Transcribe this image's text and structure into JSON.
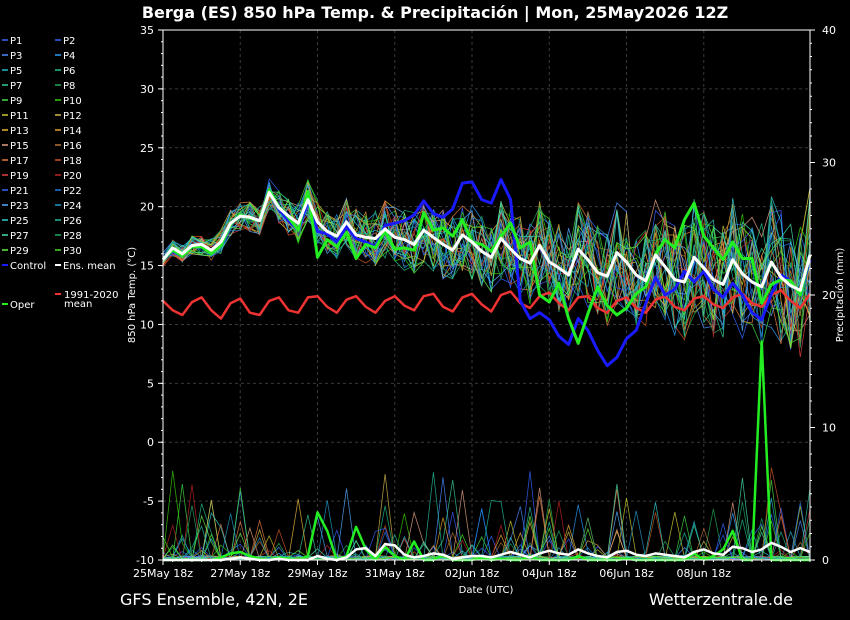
{
  "header": {
    "title": "Berga  (ES)  850 hPa Temp. & Precipitación | Mon, 25May2026 12Z"
  },
  "footer": {
    "left": "GFS Ensemble, 42N, 2E",
    "right": "Wetterzentrale.de"
  },
  "chart_data": {
    "type": "line",
    "xlabel": "Date (UTC)",
    "ylabel_left": "850 hPa Temp. (°C)",
    "ylabel_right": "Precipitación (mm)",
    "ylim_left": [
      -10,
      35
    ],
    "ylim_right": [
      0,
      40
    ],
    "yticks_left": [
      "35",
      "30",
      "25",
      "20",
      "15",
      "10",
      "5",
      "0",
      "-5",
      "-10"
    ],
    "yticks_right": [
      "40",
      "30",
      "20",
      "10",
      "0"
    ],
    "xticks": [
      "25May 18z",
      "27May 18z",
      "29May 18z",
      "31May 18z",
      "02Jun 18z",
      "04Jun 18z",
      "06Jun 18z",
      "08Jun 18z"
    ],
    "time_step_hours": 6,
    "grid": true,
    "legend_position": "left",
    "legend": [
      {
        "name": "P1",
        "color": "#3f5fff"
      },
      {
        "name": "P2",
        "color": "#3366ff"
      },
      {
        "name": "P3",
        "color": "#4a8cff"
      },
      {
        "name": "P4",
        "color": "#2a9df4"
      },
      {
        "name": "P5",
        "color": "#26b5c8"
      },
      {
        "name": "P6",
        "color": "#1fbf8a"
      },
      {
        "name": "P7",
        "color": "#33cc99"
      },
      {
        "name": "P8",
        "color": "#22aa55"
      },
      {
        "name": "P9",
        "color": "#44dd44"
      },
      {
        "name": "P10",
        "color": "#33cc00"
      },
      {
        "name": "P11",
        "color": "#c8c833"
      },
      {
        "name": "P12",
        "color": "#d6b84a"
      },
      {
        "name": "P13",
        "color": "#e8b43c"
      },
      {
        "name": "P14",
        "color": "#e0a030"
      },
      {
        "name": "P15",
        "color": "#e0a080"
      },
      {
        "name": "P16",
        "color": "#b87333"
      },
      {
        "name": "P17",
        "color": "#e07a40"
      },
      {
        "name": "P18",
        "color": "#cc5522"
      },
      {
        "name": "P19",
        "color": "#e04040"
      },
      {
        "name": "P20",
        "color": "#bb2222"
      },
      {
        "name": "P21",
        "color": "#3366ff"
      },
      {
        "name": "P22",
        "color": "#2277dd"
      },
      {
        "name": "P23",
        "color": "#55aaff"
      },
      {
        "name": "P24",
        "color": "#2299cc"
      },
      {
        "name": "P25",
        "color": "#33cccc"
      },
      {
        "name": "P26",
        "color": "#22bb99"
      },
      {
        "name": "P27",
        "color": "#44ddaa"
      },
      {
        "name": "P28",
        "color": "#22aa66"
      },
      {
        "name": "P29",
        "color": "#66ee44"
      },
      {
        "name": "P30",
        "color": "#44dd22"
      },
      {
        "name": "Control",
        "color": "#1a1aff"
      },
      {
        "name": "Ens. mean",
        "color": "#ffffff"
      },
      {
        "name": "1991-2020 mean",
        "color": "#ee3333"
      },
      {
        "name": "Oper",
        "color": "#22ee22"
      }
    ],
    "series": [
      {
        "name": "Ens. mean",
        "color": "#ffffff",
        "axis": "left",
        "values": [
          15.5,
          16.5,
          16.0,
          16.7,
          16.8,
          16.3,
          17.0,
          18.6,
          19.2,
          19.1,
          18.8,
          21.2,
          19.9,
          19.2,
          18.6,
          20.6,
          18.7,
          17.9,
          17.5,
          18.7,
          17.6,
          17.4,
          17.3,
          18.1,
          17.4,
          17.2,
          16.8,
          18.0,
          17.4,
          16.8,
          16.3,
          17.6,
          17.0,
          16.2,
          15.7,
          17.3,
          16.4,
          15.6,
          15.2,
          16.7,
          15.3,
          14.8,
          14.2,
          16.4,
          15.5,
          14.4,
          14.1,
          16.1,
          15.3,
          14.2,
          13.7,
          15.9,
          14.9,
          13.8,
          13.6,
          15.7,
          14.8,
          13.8,
          13.4,
          15.5,
          14.3,
          13.6,
          13.2,
          15.3,
          14.0,
          13.3,
          12.9,
          15.9
        ]
      },
      {
        "name": "Oper",
        "color": "#22ee22",
        "axis": "left",
        "values": [
          15.5,
          16.3,
          15.8,
          16.6,
          16.6,
          16.0,
          16.7,
          18.5,
          19.3,
          19.0,
          18.8,
          21.4,
          20.0,
          19.1,
          18.0,
          21.3,
          15.7,
          17.2,
          16.6,
          17.8,
          15.6,
          16.8,
          16.5,
          17.9,
          16.4,
          16.5,
          16.3,
          19.5,
          18.0,
          18.2,
          17.5,
          18.9,
          17.0,
          16.8,
          16.2,
          17.5,
          18.6,
          16.5,
          17.0,
          12.5,
          11.9,
          13.5,
          10.5,
          8.4,
          10.9,
          13.2,
          11.6,
          10.8,
          11.4,
          12.6,
          13.2,
          16.0,
          17.2,
          16.5,
          18.9,
          20.3,
          17.5,
          16.5,
          15.5,
          17.0,
          15.6,
          15.6,
          11.8,
          13.4,
          13.8,
          13.7,
          12.5,
          15.9
        ]
      },
      {
        "name": "Control",
        "color": "#1a1aff",
        "axis": "left",
        "values": [
          15.5,
          16.2,
          15.8,
          16.6,
          16.6,
          16.0,
          16.7,
          18.5,
          19.3,
          19.0,
          18.8,
          21.3,
          19.8,
          18.8,
          18.0,
          20.5,
          17.9,
          17.7,
          17.0,
          18.3,
          17.3,
          17.0,
          16.6,
          18.4,
          18.6,
          18.8,
          19.3,
          20.5,
          19.4,
          19.1,
          19.8,
          22.0,
          22.1,
          20.6,
          20.3,
          22.3,
          20.6,
          12.0,
          10.5,
          11.0,
          10.4,
          9.0,
          8.3,
          10.5,
          9.5,
          7.8,
          6.5,
          7.2,
          8.8,
          9.5,
          11.8,
          14.0,
          12.5,
          13.0,
          14.5,
          13.6,
          14.5,
          13.0,
          12.3,
          13.5,
          12.5,
          11.0,
          10.4,
          12.6,
          14.2,
          13.7,
          12.5,
          15.5
        ]
      },
      {
        "name": "1991-2020 mean",
        "color": "#ee3333",
        "axis": "left",
        "values": [
          12.0,
          11.2,
          10.8,
          11.9,
          12.3,
          11.2,
          10.5,
          11.8,
          12.2,
          11.0,
          10.8,
          12.0,
          12.3,
          11.2,
          11.0,
          12.3,
          12.4,
          11.5,
          11.0,
          12.1,
          12.4,
          11.5,
          11.0,
          12.0,
          12.4,
          11.6,
          11.2,
          12.4,
          12.6,
          11.5,
          11.1,
          12.3,
          12.6,
          11.7,
          11.1,
          12.5,
          12.8,
          11.8,
          11.4,
          12.4,
          12.7,
          11.8,
          11.2,
          12.3,
          12.4,
          11.4,
          11.0,
          12.0,
          12.3,
          11.4,
          11.0,
          12.1,
          12.4,
          11.5,
          11.2,
          12.2,
          12.4,
          11.7,
          11.4,
          12.3,
          12.6,
          11.8,
          11.5,
          12.5,
          12.9,
          12.0,
          11.4,
          12.6
        ]
      },
      {
        "name": "Oper precip",
        "color": "#22ee22",
        "axis": "right",
        "values": [
          0,
          0,
          0,
          0,
          0,
          0,
          0.2,
          0.5,
          0.6,
          0.3,
          0.1,
          0,
          0.2,
          0.1,
          0,
          0.3,
          3.6,
          2.2,
          0,
          0.3,
          2.5,
          0.8,
          0,
          1.0,
          0.3,
          0,
          1.4,
          0,
          0,
          0.4,
          0,
          0,
          0,
          0.2,
          0,
          0.1,
          0,
          0,
          0.3,
          0,
          0,
          0,
          0,
          0.3,
          0,
          0,
          0,
          0,
          0.1,
          0,
          0,
          0,
          0,
          0,
          0,
          0.5,
          0,
          0.3,
          0.8,
          2.2,
          0,
          0,
          16.5,
          0,
          0,
          0,
          0,
          0
        ]
      },
      {
        "name": "Ens. mean precip",
        "color": "#ffffff",
        "axis": "right",
        "values": [
          0,
          0,
          0,
          0,
          0,
          0,
          0,
          0.1,
          0.2,
          0.1,
          0,
          0,
          0.1,
          0,
          0,
          0,
          0.3,
          0.1,
          0,
          0.2,
          0.8,
          0.9,
          0.3,
          1.2,
          1.1,
          0.4,
          0.2,
          0.3,
          0.5,
          0.4,
          0.1,
          0.2,
          0.3,
          0.3,
          0.2,
          0.4,
          0.6,
          0.4,
          0.2,
          0.5,
          0.7,
          0.5,
          0.4,
          0.8,
          0.5,
          0.3,
          0.2,
          0.6,
          0.7,
          0.4,
          0.3,
          0.5,
          0.4,
          0.3,
          0.2,
          0.6,
          0.8,
          0.5,
          0.4,
          1.0,
          0.9,
          0.6,
          0.8,
          1.3,
          1.0,
          0.6,
          0.9,
          0.6
        ]
      }
    ]
  }
}
